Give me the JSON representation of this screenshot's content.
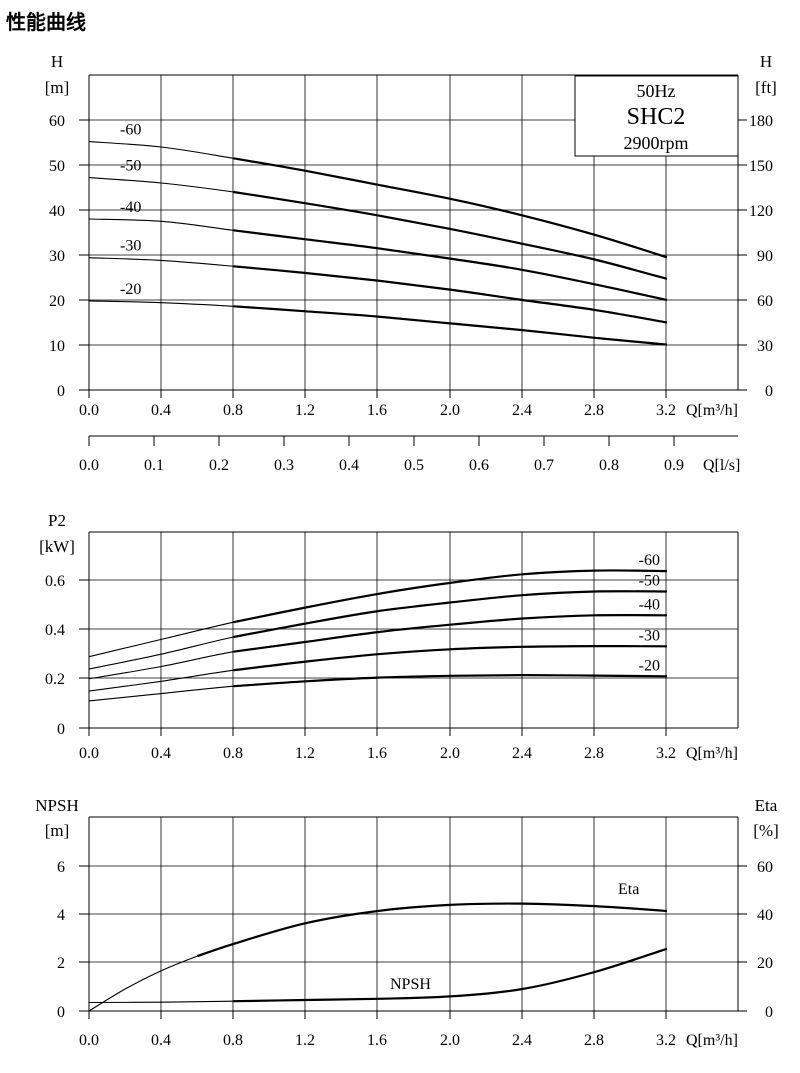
{
  "title": "性能曲线",
  "model_box": {
    "freq": "50Hz",
    "model": "SHC2",
    "speed": "2900rpm"
  },
  "chart_data": [
    {
      "type": "line",
      "name": "head",
      "ylabel": "H",
      "yunit": "[m]",
      "y2label": "H",
      "y2unit": "[ft]",
      "xlabel": "Q[m³/h]",
      "xlim": [
        0,
        3.2
      ],
      "x_ticks": [
        "0.0",
        "0.4",
        "0.8",
        "1.2",
        "1.6",
        "2.0",
        "2.4",
        "2.8",
        "3.2"
      ],
      "ylim": [
        0,
        60
      ],
      "y_ticks": [
        "0",
        "10",
        "20",
        "30",
        "40",
        "50",
        "60"
      ],
      "y2_ticks": [
        "0",
        "30",
        "60",
        "90",
        "120",
        "150",
        "180"
      ],
      "x2label": "Q[l/s]",
      "x2_ticks": [
        "0.0",
        "0.1",
        "0.2",
        "0.3",
        "0.4",
        "0.5",
        "0.6",
        "0.7",
        "0.8",
        "0.9"
      ],
      "grid": true,
      "series": [
        {
          "name": "-60",
          "x": [
            0,
            0.4,
            0.8,
            1.2,
            1.6,
            2.0,
            2.4,
            2.8,
            3.2
          ],
          "values": [
            55.2,
            54,
            51.5,
            48.7,
            45.6,
            42.5,
            38.8,
            34.5,
            29.5
          ]
        },
        {
          "name": "-50",
          "x": [
            0,
            0.4,
            0.8,
            1.2,
            1.6,
            2.0,
            2.4,
            2.8,
            3.2
          ],
          "values": [
            47.2,
            46,
            44,
            41.5,
            38.8,
            35.8,
            32.5,
            29,
            24.7
          ]
        },
        {
          "name": "-40",
          "x": [
            0,
            0.4,
            0.8,
            1.2,
            1.6,
            2.0,
            2.4,
            2.8,
            3.2
          ],
          "values": [
            38,
            37.5,
            35.5,
            33.5,
            31.5,
            29.2,
            26.7,
            23.5,
            20
          ]
        },
        {
          "name": "-30",
          "x": [
            0,
            0.4,
            0.8,
            1.2,
            1.6,
            2.0,
            2.4,
            2.8,
            3.2
          ],
          "values": [
            29.4,
            28.8,
            27.5,
            26,
            24.3,
            22.3,
            20,
            17.8,
            15
          ]
        },
        {
          "name": "-20",
          "x": [
            0,
            0.4,
            0.8,
            1.2,
            1.6,
            2.0,
            2.4,
            2.8,
            3.2
          ],
          "values": [
            19.8,
            19.4,
            18.6,
            17.5,
            16.3,
            14.8,
            13.3,
            11.6,
            10.1
          ]
        }
      ]
    },
    {
      "type": "line",
      "name": "power",
      "ylabel": "P2",
      "yunit": "[kW]",
      "xlabel": "Q[m³/h]",
      "xlim": [
        0,
        3.2
      ],
      "x_ticks": [
        "0.0",
        "0.4",
        "0.8",
        "1.2",
        "1.6",
        "2.0",
        "2.4",
        "2.8",
        "3.2"
      ],
      "ylim": [
        0,
        0.8
      ],
      "y_ticks": [
        "0",
        "0.2",
        "0.4",
        "0.6"
      ],
      "grid": true,
      "series": [
        {
          "name": "-60",
          "x": [
            0,
            0.4,
            0.8,
            1.2,
            1.6,
            2.0,
            2.4,
            2.8,
            3.2
          ],
          "values": [
            0.29,
            0.36,
            0.43,
            0.49,
            0.545,
            0.59,
            0.625,
            0.64,
            0.638
          ]
        },
        {
          "name": "-50",
          "x": [
            0,
            0.4,
            0.8,
            1.2,
            1.6,
            2.0,
            2.4,
            2.8,
            3.2
          ],
          "values": [
            0.24,
            0.3,
            0.37,
            0.425,
            0.475,
            0.51,
            0.54,
            0.555,
            0.555
          ]
        },
        {
          "name": "-40",
          "x": [
            0,
            0.4,
            0.8,
            1.2,
            1.6,
            2.0,
            2.4,
            2.8,
            3.2
          ],
          "values": [
            0.2,
            0.25,
            0.31,
            0.35,
            0.39,
            0.42,
            0.445,
            0.458,
            0.458
          ]
        },
        {
          "name": "-30",
          "x": [
            0,
            0.4,
            0.8,
            1.2,
            1.6,
            2.0,
            2.4,
            2.8,
            3.2
          ],
          "values": [
            0.15,
            0.19,
            0.235,
            0.27,
            0.3,
            0.32,
            0.33,
            0.333,
            0.332
          ]
        },
        {
          "name": "-20",
          "x": [
            0,
            0.4,
            0.8,
            1.2,
            1.6,
            2.0,
            2.4,
            2.8,
            3.2
          ],
          "values": [
            0.11,
            0.14,
            0.17,
            0.19,
            0.205,
            0.212,
            0.215,
            0.213,
            0.21
          ]
        }
      ]
    },
    {
      "type": "line",
      "name": "npsh-eta",
      "ylabel": "NPSH",
      "yunit": "[m]",
      "y2label": "Eta",
      "y2unit": "[%]",
      "xlabel": "Q[m³/h]",
      "xlim": [
        0,
        3.2
      ],
      "x_ticks": [
        "0.0",
        "0.4",
        "0.8",
        "1.2",
        "1.6",
        "2.0",
        "2.4",
        "2.8",
        "3.2"
      ],
      "ylim": [
        0,
        8
      ],
      "y_ticks": [
        "0",
        "2",
        "4",
        "6"
      ],
      "y2_ticks": [
        "0",
        "20",
        "40",
        "60"
      ],
      "grid": true,
      "series": [
        {
          "name": "Eta",
          "x": [
            0,
            0.2,
            0.4,
            0.6,
            0.8,
            1.2,
            1.6,
            2.0,
            2.4,
            2.8,
            3.2
          ],
          "values": [
            0,
            9,
            16.5,
            22.5,
            27.5,
            36,
            41,
            43.5,
            44,
            43,
            41
          ]
        },
        {
          "name": "NPSH",
          "x": [
            0,
            0.4,
            0.8,
            1.2,
            1.6,
            2.0,
            2.4,
            2.8,
            3.2
          ],
          "values": [
            0.35,
            0.36,
            0.4,
            0.45,
            0.5,
            0.6,
            0.9,
            1.6,
            2.55
          ]
        }
      ]
    }
  ]
}
